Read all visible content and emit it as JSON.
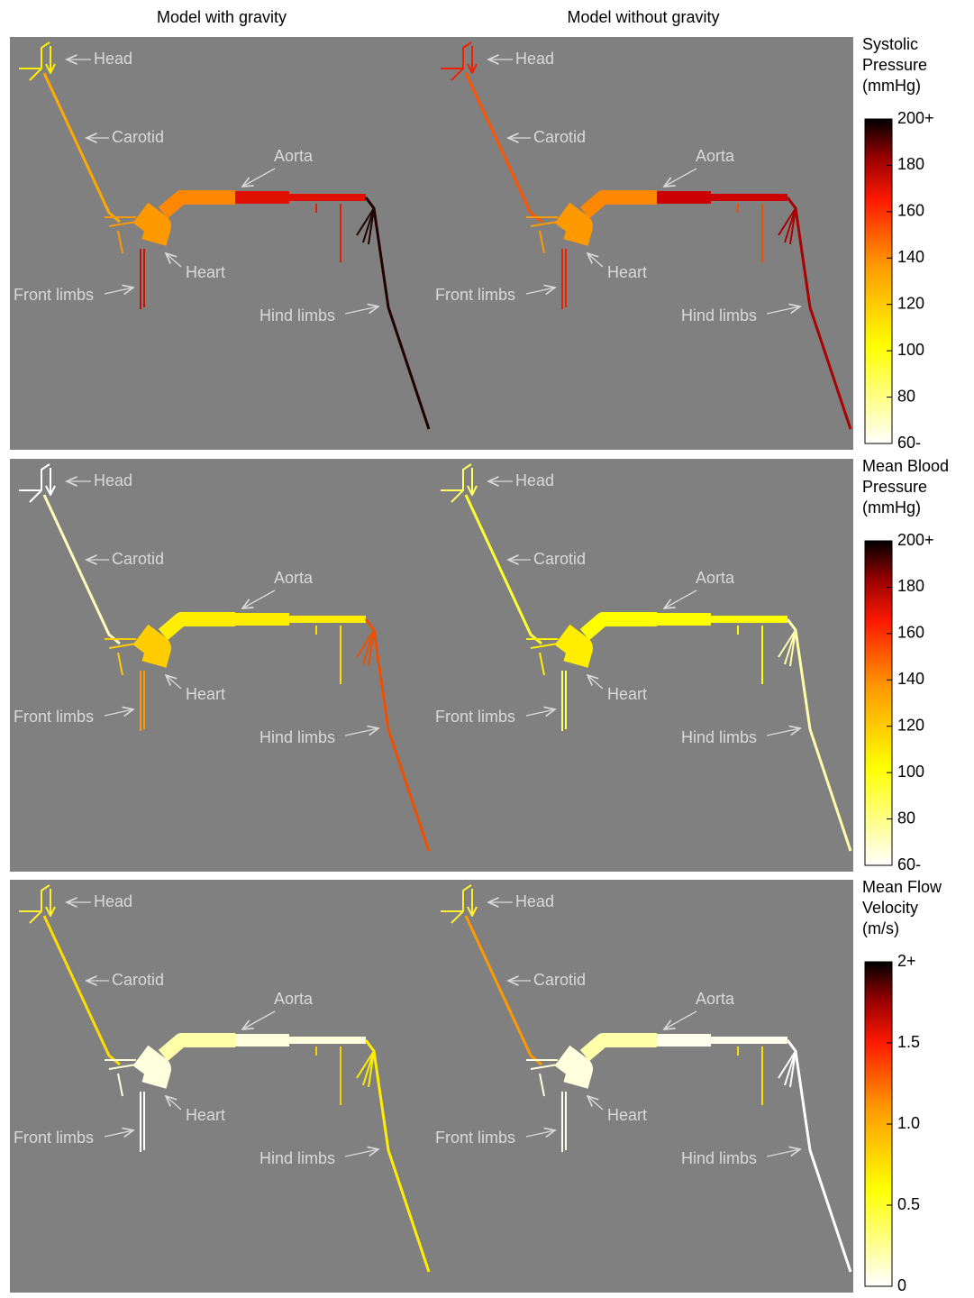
{
  "columns": [
    "Model with gravity",
    "Model without gravity"
  ],
  "labels": {
    "head": "Head",
    "carotid": "Carotid",
    "aorta": "Aorta",
    "heart": "Heart",
    "front_limbs": "Front limbs",
    "hind_limbs": "Hind limbs"
  },
  "rows": [
    {
      "colorbar": {
        "title": [
          "Systolic",
          "Pressure",
          "(mmHg)"
        ],
        "ticks": [
          "200+",
          "180",
          "160",
          "140",
          "120",
          "100",
          "80",
          "60-"
        ]
      }
    },
    {
      "colorbar": {
        "title": [
          "Mean Blood",
          "Pressure",
          "(mmHg)"
        ],
        "ticks": [
          "200+",
          "180",
          "160",
          "140",
          "120",
          "100",
          "80",
          "60-"
        ]
      }
    },
    {
      "colorbar": {
        "title": [
          "Mean Flow",
          "Velocity",
          "(m/s)"
        ],
        "ticks": [
          "2+",
          "1.5",
          "1.0",
          "0.5",
          "0"
        ]
      }
    }
  ]
}
